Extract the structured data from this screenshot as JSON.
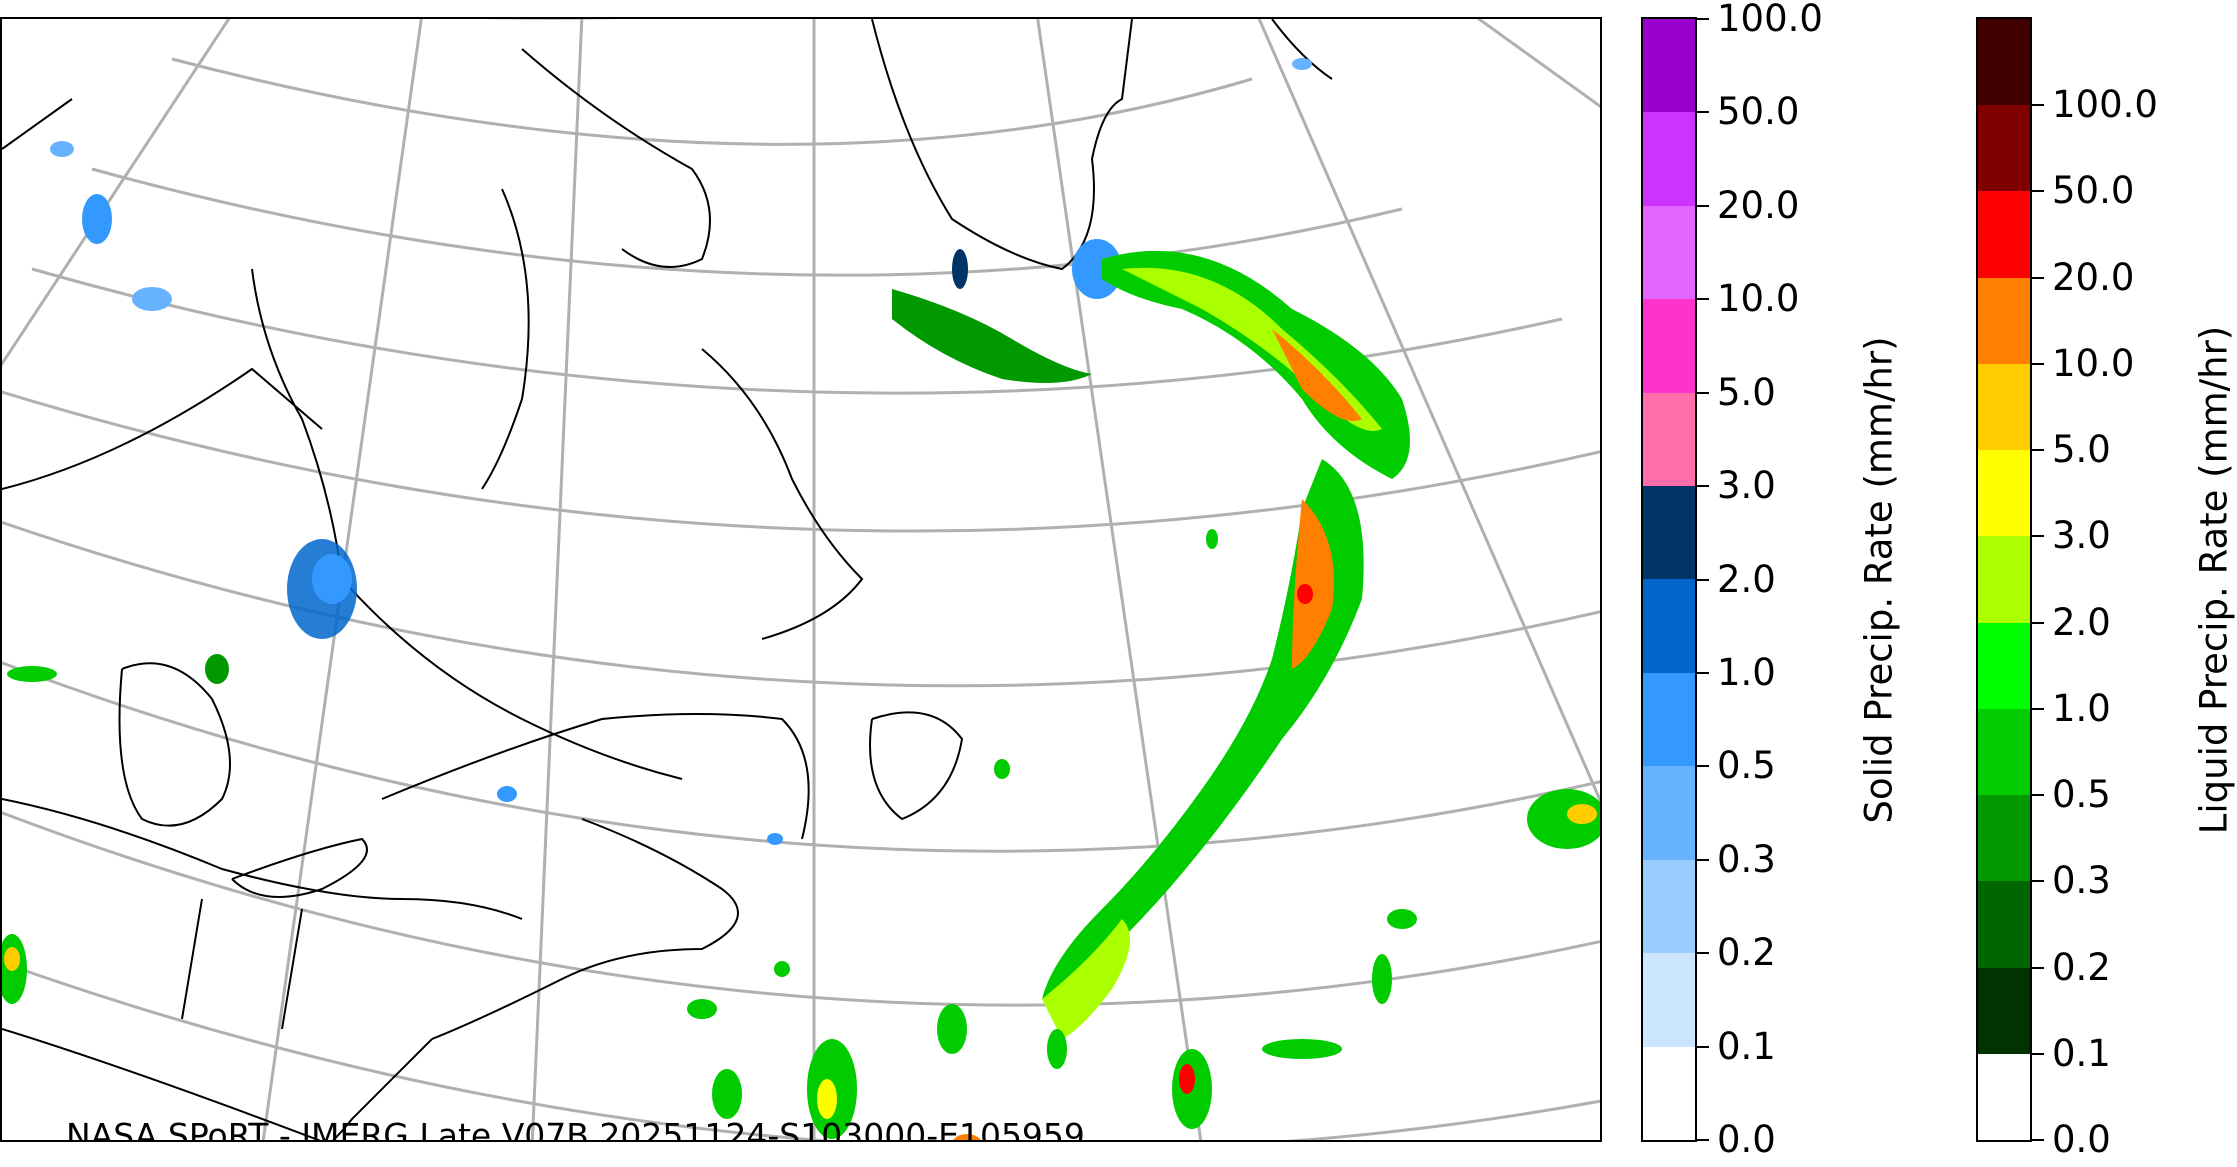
{
  "caption": "NASA SPoRT - IMERG Late V07B 20251124-S103000-E105959",
  "solid_colorbar": {
    "label": "Solid Precip. Rate (mm/hr)",
    "ticks": [
      "0.0",
      "0.1",
      "0.2",
      "0.3",
      "0.5",
      "1.0",
      "2.0",
      "3.0",
      "5.0",
      "10.0",
      "20.0",
      "50.0",
      "100.0"
    ],
    "colors": [
      "#ffffff",
      "#cce5ff",
      "#99ccff",
      "#66b2ff",
      "#3399ff",
      "#0066cc",
      "#003366",
      "#ff6eaa",
      "#ff33cc",
      "#e066ff",
      "#cc33ff",
      "#9900cc"
    ]
  },
  "liquid_colorbar": {
    "label": "Liquid Precip. Rate (mm/hr)",
    "ticks": [
      "0.0",
      "0.1",
      "0.2",
      "0.3",
      "0.5",
      "1.0",
      "2.0",
      "3.0",
      "5.0",
      "10.0",
      "20.0",
      "50.0",
      "100.0"
    ],
    "colors": [
      "#ffffff",
      "#003300",
      "#006600",
      "#009900",
      "#00cc00",
      "#00ff00",
      "#aaff00",
      "#ffff00",
      "#ffcc00",
      "#ff8000",
      "#ff0000",
      "#800000",
      "#400000"
    ]
  }
}
